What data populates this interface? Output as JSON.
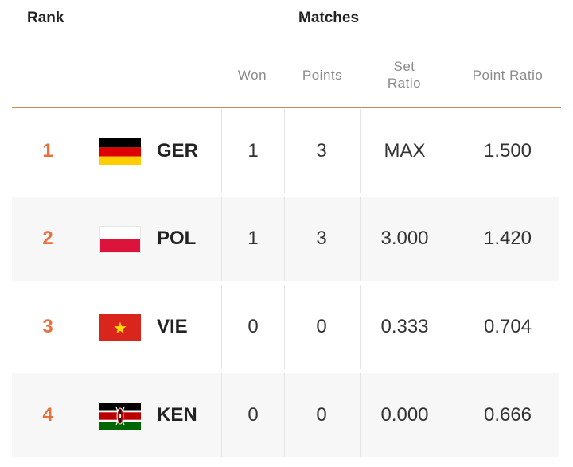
{
  "header": {
    "rank_label": "Rank",
    "matches_label": "Matches",
    "columns": {
      "won": "Won",
      "points": "Points",
      "set_ratio_line1": "Set",
      "set_ratio_line2": "Ratio",
      "point_ratio": "Point Ratio"
    }
  },
  "rows": [
    {
      "rank": "1",
      "code": "GER",
      "flag_icon": "germany-flag-icon",
      "won": "1",
      "points": "3",
      "set_ratio": "MAX",
      "point_ratio": "1.500"
    },
    {
      "rank": "2",
      "code": "POL",
      "flag_icon": "poland-flag-icon",
      "won": "1",
      "points": "3",
      "set_ratio": "3.000",
      "point_ratio": "1.420"
    },
    {
      "rank": "3",
      "code": "VIE",
      "flag_icon": "vietnam-flag-icon",
      "won": "0",
      "points": "0",
      "set_ratio": "0.333",
      "point_ratio": "0.704"
    },
    {
      "rank": "4",
      "code": "KEN",
      "flag_icon": "kenya-flag-icon",
      "won": "0",
      "points": "0",
      "set_ratio": "0.000",
      "point_ratio": "0.666"
    }
  ],
  "colors": {
    "rank_accent": "#e8703a",
    "header_divider": "#c98a5c",
    "row_shade": "#f7f7f7"
  }
}
